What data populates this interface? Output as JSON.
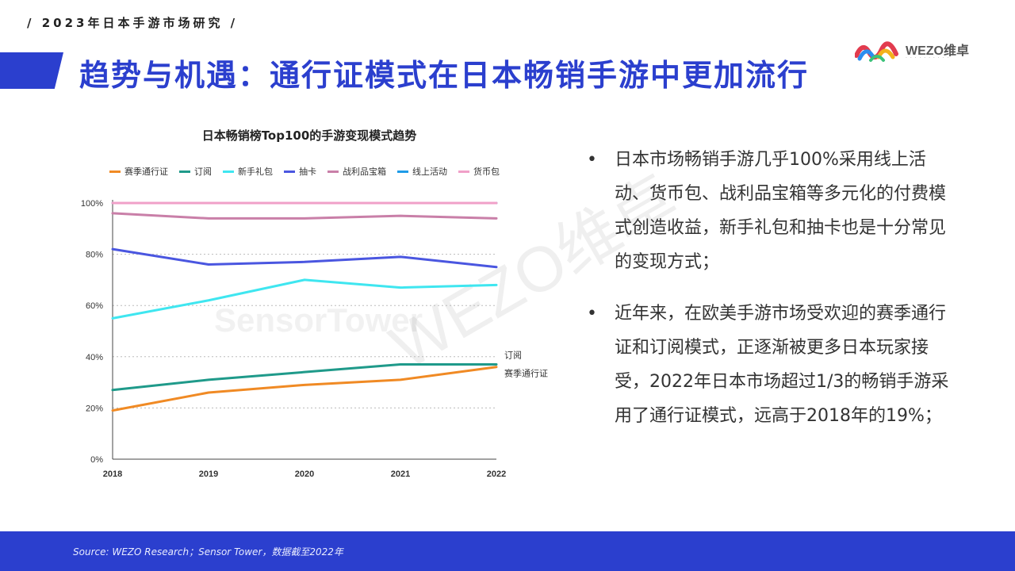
{
  "header": {
    "tag": "/ 2023年日本手游市场研究 /"
  },
  "slide": {
    "title": "趋势与机遇：通行证模式在日本畅销手游中更加流行"
  },
  "logo": {
    "name": "WEZO维卓",
    "sub": "· · · · · · · · · ·"
  },
  "watermarks": {
    "wezo": "WEZO维卓",
    "sensor": "SensorTower"
  },
  "bullets": [
    "日本市场畅销手游几乎100%采用线上活动、货币包、战利品宝箱等多元化的付费模式创造收益，新手礼包和抽卡也是十分常见的变现方式；",
    "近年来，在欧美手游市场受欢迎的赛季通行证和订阅模式，正逐渐被更多日本玩家接受，2022年日本市场超过1/3的畅销手游采用了通行证模式，远高于2018年的19%；"
  ],
  "footer": {
    "source": "Source:  WEZO Research；Sensor Tower，数据截至2022年"
  },
  "colors": {
    "accent": "#2b3fce"
  },
  "chart_data": {
    "type": "line",
    "title": "日本畅销榜Top100的手游变现模式趋势",
    "categories": [
      "2018",
      "2019",
      "2020",
      "2021",
      "2022"
    ],
    "ylim": [
      0,
      100
    ],
    "yticks": [
      "0%",
      "20%",
      "40%",
      "60%",
      "80%",
      "100%"
    ],
    "grid": true,
    "legend": "top",
    "series": [
      {
        "name": "赛季通行证",
        "color": "#f08a24",
        "values": [
          19,
          26,
          29,
          31,
          36
        ]
      },
      {
        "name": "订阅",
        "color": "#1f9a8a",
        "values": [
          27,
          31,
          34,
          37,
          37
        ]
      },
      {
        "name": "新手礼包",
        "color": "#3fe6f0",
        "values": [
          55,
          62,
          70,
          67,
          68
        ]
      },
      {
        "name": "抽卡",
        "color": "#4a56e0",
        "values": [
          82,
          76,
          77,
          79,
          75
        ]
      },
      {
        "name": "战利品宝箱",
        "color": "#c97fa8",
        "values": [
          96,
          94,
          94,
          95,
          94
        ]
      },
      {
        "name": "线上活动",
        "color": "#1e9be8",
        "values": [
          100,
          100,
          100,
          100,
          100
        ]
      },
      {
        "name": "货币包",
        "color": "#f0a0c8",
        "values": [
          100,
          100,
          100,
          100,
          100
        ]
      }
    ],
    "end_labels": [
      "订阅",
      "赛季通行证"
    ]
  }
}
